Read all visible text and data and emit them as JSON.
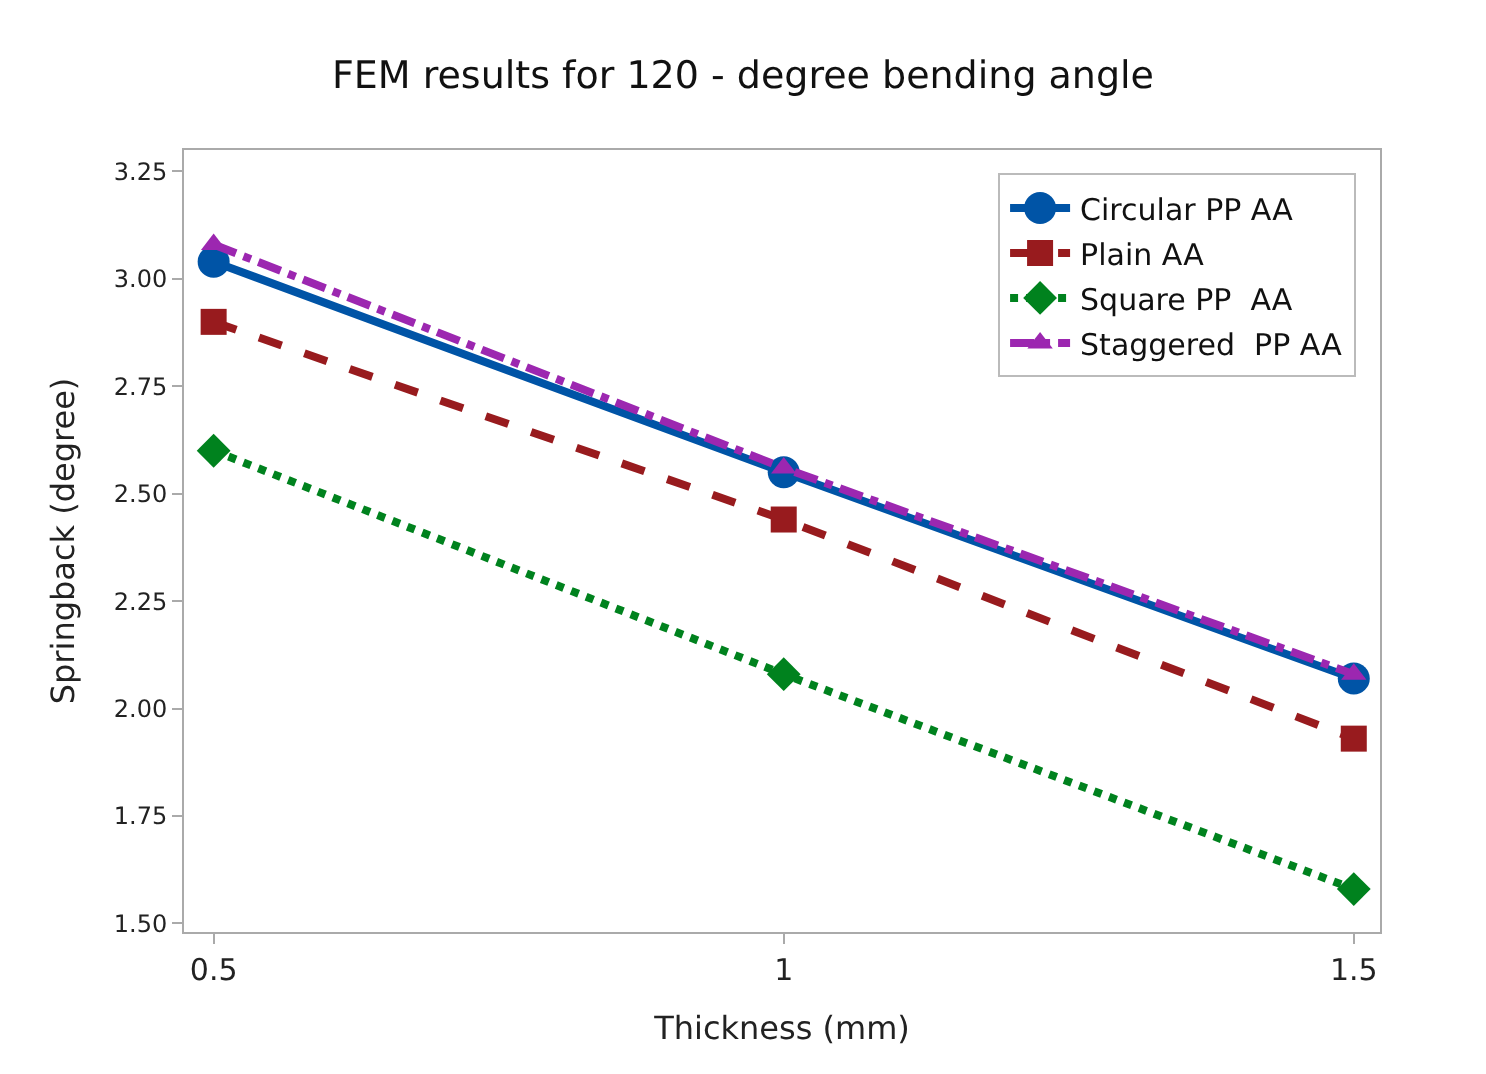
{
  "chart_data": {
    "type": "line",
    "title": "FEM results for 120 - degree bending angle",
    "xlabel": "Thickness (mm)",
    "ylabel": "Springback (degree)",
    "x": [
      0.5,
      1,
      1.5
    ],
    "series": [
      {
        "name": "Circular PP AA",
        "color": "#0054a6",
        "values": [
          3.04,
          2.55,
          2.07
        ],
        "marker": "circle",
        "line_style": "solid"
      },
      {
        "name": "Plain AA",
        "color": "#981b1e",
        "values": [
          2.9,
          2.44,
          1.93
        ],
        "marker": "square",
        "line_style": "dashed"
      },
      {
        "name": "Square PP  AA",
        "color": "#00821e",
        "values": [
          2.6,
          2.08,
          1.58
        ],
        "marker": "diamond",
        "line_style": "dotted"
      },
      {
        "name": "Staggered  PP AA",
        "color": "#9c27b0",
        "values": [
          3.08,
          2.56,
          2.08
        ],
        "marker": "triangle",
        "line_style": "dashdot"
      }
    ],
    "xlim": [
      0.474,
      1.523
    ],
    "xticks": [
      0.5,
      1,
      1.5
    ],
    "ylim": [
      1.48,
      3.3
    ],
    "yticks": [
      {
        "value": 1.5,
        "label": "1.50"
      },
      {
        "value": 1.75,
        "label": "1.75"
      },
      {
        "value": 2.0,
        "label": "2.00"
      },
      {
        "value": 2.25,
        "label": "2.25"
      },
      {
        "value": 2.5,
        "label": "2.50"
      },
      {
        "value": 2.75,
        "label": "2.75"
      },
      {
        "value": 3.0,
        "label": "3.00"
      },
      {
        "value": 3.25,
        "label": "3.25"
      }
    ],
    "legend": "top right"
  }
}
